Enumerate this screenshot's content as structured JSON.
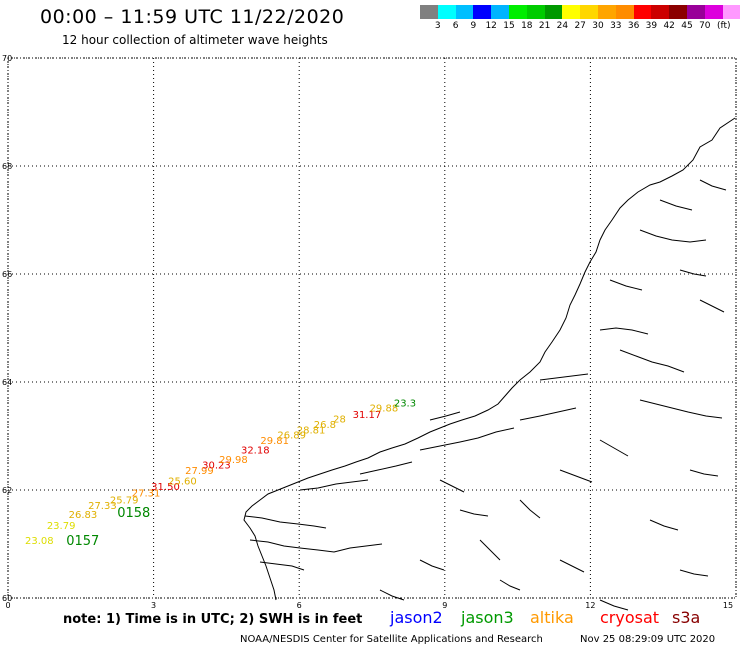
{
  "header": {
    "title": "00:00 – 11:59 UTC 11/22/2020",
    "subtitle": "12 hour collection of altimeter wave heights"
  },
  "colorbar": {
    "colors": [
      "#808080",
      "#00ffff",
      "#00bfff",
      "#0000ff",
      "#00b4ff",
      "#00ee00",
      "#00cc00",
      "#009900",
      "#ffff00",
      "#ffd700",
      "#ffa500",
      "#ff8c00",
      "#ff0000",
      "#cc0000",
      "#8b0000",
      "#990099",
      "#dd00dd",
      "#ff99ff",
      "#000000"
    ],
    "labels": [
      "3",
      "6",
      "9",
      "12",
      "15",
      "18",
      "21",
      "24",
      "27",
      "30",
      "33",
      "36",
      "39",
      "42",
      "45",
      "70"
    ],
    "unit": "(ft)"
  },
  "axes": {
    "y_ticks": [
      "70",
      "68",
      "66",
      "64",
      "62",
      "60"
    ],
    "x_ticks": [
      "0",
      "3",
      "6",
      "9",
      "12",
      "15"
    ]
  },
  "chart_data": {
    "type": "scatter",
    "xlabel": "",
    "ylabel": "",
    "xlim": [
      0,
      15
    ],
    "ylim": [
      60,
      70
    ],
    "labels": [
      {
        "text": "23.08",
        "x": 0.35,
        "y": 61.0,
        "color": "#dddd00"
      },
      {
        "text": "0157",
        "x": 1.2,
        "y": 60.98,
        "color": "#008800"
      },
      {
        "text": "23.79",
        "x": 0.8,
        "y": 61.28,
        "color": "#dddd00"
      },
      {
        "text": "26.83",
        "x": 1.25,
        "y": 61.48,
        "color": "#e0b000"
      },
      {
        "text": "27.33",
        "x": 1.65,
        "y": 61.65,
        "color": "#e0b000"
      },
      {
        "text": "0158",
        "x": 2.25,
        "y": 61.5,
        "color": "#008800"
      },
      {
        "text": "25.79",
        "x": 2.1,
        "y": 61.75,
        "color": "#e0b000"
      },
      {
        "text": "27.31",
        "x": 2.55,
        "y": 61.88,
        "color": "#ff8c00"
      },
      {
        "text": "31.50",
        "x": 2.95,
        "y": 62.0,
        "color": "#e00000"
      },
      {
        "text": "25.60",
        "x": 3.3,
        "y": 62.1,
        "color": "#e0b000"
      },
      {
        "text": "27.99",
        "x": 3.65,
        "y": 62.3,
        "color": "#ff8c00"
      },
      {
        "text": "30.23",
        "x": 4.0,
        "y": 62.4,
        "color": "#e00000"
      },
      {
        "text": "29.98",
        "x": 4.35,
        "y": 62.5,
        "color": "#ff8c00"
      },
      {
        "text": "32.18",
        "x": 4.8,
        "y": 62.68,
        "color": "#e00000"
      },
      {
        "text": "29.81",
        "x": 5.2,
        "y": 62.85,
        "color": "#ff8c00"
      },
      {
        "text": "26.89",
        "x": 5.55,
        "y": 62.95,
        "color": "#e0b000"
      },
      {
        "text": "28.81",
        "x": 5.95,
        "y": 63.05,
        "color": "#e0b000"
      },
      {
        "text": "26.8",
        "x": 6.3,
        "y": 63.15,
        "color": "#e0b000"
      },
      {
        "text": "28",
        "x": 6.7,
        "y": 63.25,
        "color": "#e0b000"
      },
      {
        "text": "31.17",
        "x": 7.1,
        "y": 63.33,
        "color": "#e00000"
      },
      {
        "text": "29.88",
        "x": 7.45,
        "y": 63.45,
        "color": "#e0b000"
      },
      {
        "text": "23.3",
        "x": 7.95,
        "y": 63.55,
        "color": "#008800"
      }
    ]
  },
  "legend": {
    "note": "note: 1) Time is in UTC; 2) SWH is in feet",
    "satellites": [
      {
        "name": "jason2",
        "color": "#0000ff"
      },
      {
        "name": "jason3",
        "color": "#009900"
      },
      {
        "name": "altika",
        "color": "#ff9900"
      },
      {
        "name": "cryosat",
        "color": "#ff0000"
      },
      {
        "name": "s3a",
        "color": "#880000"
      }
    ]
  },
  "footer": {
    "agency": "NOAA/NESDIS Center for Satellite Applications and Research",
    "timestamp": "Nov 25 08:29:09 UTC 2020"
  }
}
